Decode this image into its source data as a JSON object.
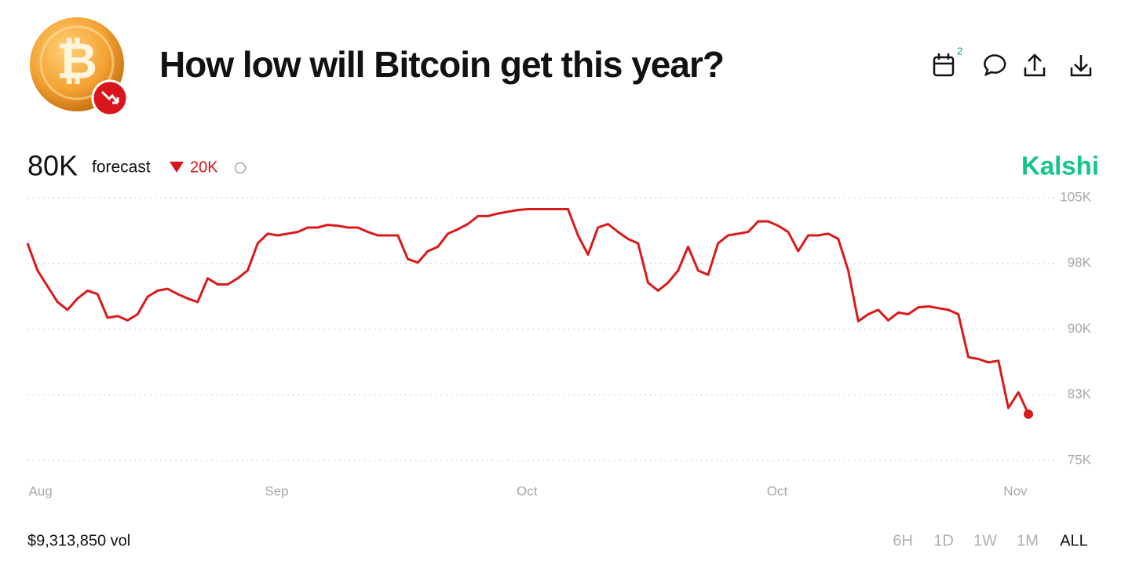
{
  "header": {
    "title": "How low will Bitcoin get this year?",
    "badge": "2"
  },
  "forecast": {
    "value": "80K",
    "label": "forecast",
    "change": "20K"
  },
  "brand": "Kalshi",
  "volume": "$9,313,850 vol",
  "ranges": [
    "6H",
    "1D",
    "1W",
    "1M",
    "ALL"
  ],
  "chart_data": {
    "type": "line",
    "color": "#d91a1a",
    "x": [
      0,
      1,
      2,
      3,
      4,
      5,
      6,
      7,
      8,
      9,
      10,
      11,
      12,
      13,
      14,
      15,
      16,
      17,
      18,
      19,
      20,
      21,
      22,
      23,
      24,
      25,
      26,
      27,
      28,
      29,
      30,
      31,
      32,
      33,
      34,
      35,
      36,
      37,
      38,
      39,
      40,
      41,
      42,
      43,
      44,
      45,
      46,
      47,
      48,
      49,
      50,
      51,
      52,
      53,
      54,
      55,
      56,
      57,
      58,
      59,
      60,
      61,
      62,
      63,
      64,
      65,
      66,
      67,
      68,
      69,
      70,
      71,
      72,
      73,
      74,
      75,
      76,
      77,
      78,
      79,
      80,
      81,
      82,
      83,
      84,
      85,
      86,
      87,
      88,
      89,
      90,
      91,
      92,
      93,
      94,
      95,
      96,
      97,
      98,
      99,
      100
    ],
    "values": [
      99800,
      96700,
      94900,
      93100,
      92200,
      93500,
      94400,
      94000,
      91300,
      91500,
      91000,
      91700,
      93700,
      94400,
      94600,
      94000,
      93500,
      93100,
      95800,
      95100,
      95100,
      95800,
      96700,
      99800,
      100900,
      100700,
      100900,
      101100,
      101600,
      101600,
      101900,
      101800,
      101600,
      101600,
      101100,
      100700,
      100700,
      100700,
      98000,
      97600,
      98900,
      99400,
      100900,
      101400,
      102000,
      102900,
      102900,
      103200,
      103400,
      103600,
      103700,
      103700,
      103700,
      103700,
      103700,
      100700,
      98500,
      101600,
      102000,
      101100,
      100300,
      99800,
      95300,
      94400,
      95300,
      96700,
      99400,
      96700,
      96200,
      99800,
      100700,
      100900,
      101100,
      102300,
      102300,
      101800,
      101100,
      98900,
      100700,
      100700,
      100900,
      100300,
      96700,
      90900,
      91700,
      92200,
      91000,
      91900,
      91700,
      92500,
      92600,
      92400,
      92200,
      91700,
      86800,
      86600,
      86200,
      86400,
      81000,
      82800,
      80300
    ],
    "xlim": [
      0,
      100
    ],
    "xticks": [
      {
        "value": 1.3,
        "label": "Aug"
      },
      {
        "value": 24.9,
        "label": "Sep"
      },
      {
        "value": 49.9,
        "label": "Oct"
      },
      {
        "value": 74.9,
        "label": "Oct"
      },
      {
        "value": 98.7,
        "label": "Nov"
      }
    ],
    "ylim": [
      75000,
      105000
    ],
    "yticks": [
      {
        "value": 75000,
        "label": "75K"
      },
      {
        "value": 82500,
        "label": "83K"
      },
      {
        "value": 90000,
        "label": "90K"
      },
      {
        "value": 97500,
        "label": "98K"
      },
      {
        "value": 105000,
        "label": "105K"
      }
    ],
    "grid": true
  }
}
